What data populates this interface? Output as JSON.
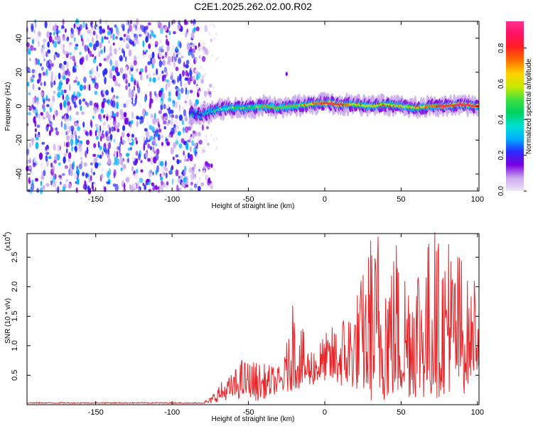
{
  "figure_title": "C2E1.2025.262.02.00.R02",
  "chart_data": [
    {
      "type": "heatmap",
      "title": "C2E1.2025.262.02.00.R02",
      "xlabel": "Height of straight line (km)",
      "ylabel": "Frequency (Hz)",
      "xlim": [
        -195,
        101
      ],
      "ylim": [
        -50,
        50
      ],
      "x_ticks": [
        -150,
        -100,
        -50,
        0,
        50,
        100
      ],
      "y_ticks": [
        -40,
        -20,
        0,
        20,
        40
      ],
      "noise_region_x": [
        -195,
        -82
      ],
      "signal_ridge": {
        "x": [
          -88,
          -80,
          -70,
          -60,
          -50,
          -40,
          -30,
          -20,
          -10,
          0,
          10,
          20,
          30,
          40,
          50,
          60,
          70,
          80,
          90,
          100
        ],
        "frequency": [
          -4,
          -5,
          -2,
          -1,
          -1,
          0,
          -1,
          0,
          1,
          2,
          1,
          1,
          0,
          1,
          0,
          -1,
          0,
          0,
          1,
          0
        ],
        "amplitude": [
          0.2,
          0.25,
          0.35,
          0.4,
          0.45,
          0.5,
          0.55,
          0.5,
          0.65,
          0.8,
          0.85,
          0.6,
          0.55,
          0.6,
          0.55,
          0.6,
          0.75,
          0.8,
          0.9,
          0.8
        ]
      },
      "colorbar": {
        "label": "Normalized spectral amplitude",
        "range": [
          0.0,
          0.95
        ],
        "ticks": [
          0.0,
          0.2,
          0.4,
          0.6,
          0.8
        ],
        "tick_labels": [
          "0.0",
          "0.2",
          "0.4",
          "0.6",
          "0.8"
        ],
        "colors": [
          "#f0e6f8",
          "#c9a8ee",
          "#7a00e0",
          "#2a2aff",
          "#00b0ff",
          "#00e0d0",
          "#00d060",
          "#40e040",
          "#c8e800",
          "#ffd000",
          "#ff7000",
          "#ff2020",
          "#ff1060",
          "#ff3090"
        ]
      }
    },
    {
      "type": "line",
      "xlabel": "Height of straight line (km)",
      "ylabel": "SNR (10 * v/v)",
      "exponent_label": "(x10",
      "exponent_power": "4",
      "exponent_close": ")",
      "xlim": [
        -195,
        101
      ],
      "ylim": [
        0,
        2.9
      ],
      "x_ticks": [
        -150,
        -100,
        -50,
        0,
        50,
        100
      ],
      "y_ticks": [
        0.5,
        1.0,
        1.5,
        2.0,
        2.5
      ],
      "y_tick_labels": [
        "0.5",
        "1.0",
        "1.5",
        "2.0",
        "2.5"
      ],
      "series_color": "#e8262a",
      "envelope": {
        "x": [
          -195,
          -90,
          -80,
          -75,
          -70,
          -60,
          -55,
          -50,
          -45,
          -40,
          -30,
          -25,
          -20,
          -10,
          0,
          10,
          20,
          25,
          30,
          40,
          50,
          60,
          70,
          80,
          90,
          95,
          100
        ],
        "upper": [
          0.02,
          0.03,
          0.05,
          0.12,
          0.35,
          0.55,
          0.8,
          0.75,
          0.75,
          0.7,
          0.65,
          0.9,
          1.65,
          1.0,
          1.2,
          1.5,
          1.9,
          2.3,
          2.8,
          2.85,
          2.5,
          2.8,
          2.9,
          2.75,
          2.7,
          1.9,
          2.1
        ],
        "lower": [
          0.02,
          0.02,
          0.02,
          0.02,
          0.05,
          0.1,
          0.1,
          0.15,
          0.05,
          0.1,
          0.2,
          0.2,
          0.25,
          0.3,
          0.4,
          0.3,
          0.25,
          0.2,
          0.05,
          0.05,
          0.1,
          0.1,
          0.05,
          0.2,
          0.1,
          0.4,
          0.6
        ]
      },
      "peaks": [
        {
          "x": -25,
          "y": 1.05
        },
        {
          "x": -21,
          "y": 1.68
        },
        {
          "x": 30,
          "y": 2.78
        },
        {
          "x": 35,
          "y": 2.85
        },
        {
          "x": 47,
          "y": 2.7
        },
        {
          "x": 72,
          "y": 2.92
        },
        {
          "x": 81,
          "y": 2.72
        },
        {
          "x": 98,
          "y": 2.1
        }
      ]
    }
  ]
}
